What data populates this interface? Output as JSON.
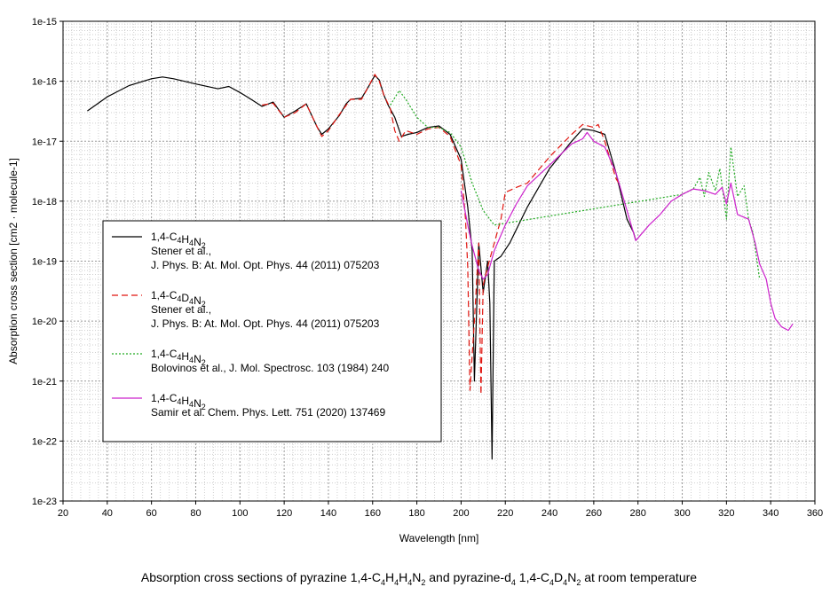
{
  "chart_data": {
    "type": "line",
    "title": "",
    "caption": "Absorption cross sections of pyrazine 1,4-C4H4H4N2 and pyrazine-d4 1,4-C4D4N2 at room temperature",
    "xlabel": "Wavelength [nm]",
    "ylabel": "Absorption cross section [cm2 · molecule-1]",
    "xlim": [
      20,
      360
    ],
    "ylim": [
      1e-23,
      1e-15
    ],
    "yscale": "log",
    "grid": true,
    "x_ticks": [
      "20",
      "40",
      "60",
      "80",
      "100",
      "120",
      "140",
      "160",
      "180",
      "200",
      "220",
      "240",
      "260",
      "280",
      "300",
      "320",
      "340",
      "360"
    ],
    "y_ticks": [
      "1e-23",
      "1e-22",
      "1e-21",
      "1e-20",
      "1e-19",
      "1e-18",
      "1e-17",
      "1e-16",
      "1e-15"
    ],
    "legend_position": "lower-left",
    "series": [
      {
        "name": "1,4-C4H4N2",
        "reference": [
          "Stener et al.,",
          "J. Phys. B: At. Mol. Opt. Phys. 44 (2011) 075203"
        ],
        "color": "#000000",
        "dash": "solid",
        "points": [
          [
            31,
            3.2e-17
          ],
          [
            40,
            5.5e-17
          ],
          [
            50,
            8.5e-17
          ],
          [
            60,
            1.1e-16
          ],
          [
            65,
            1.18e-16
          ],
          [
            70,
            1.1e-16
          ],
          [
            80,
            9e-17
          ],
          [
            90,
            7.5e-17
          ],
          [
            95,
            8.2e-17
          ],
          [
            100,
            6.5e-17
          ],
          [
            105,
            5e-17
          ],
          [
            110,
            3.8e-17
          ],
          [
            115,
            4.5e-17
          ],
          [
            120,
            2.5e-17
          ],
          [
            125,
            3.2e-17
          ],
          [
            130,
            4.2e-17
          ],
          [
            135,
            1.7e-17
          ],
          [
            137,
            1.3e-17
          ],
          [
            140,
            1.6e-17
          ],
          [
            145,
            2.7e-17
          ],
          [
            148,
            4.2e-17
          ],
          [
            150,
            5e-17
          ],
          [
            155,
            5.2e-17
          ],
          [
            158,
            8e-17
          ],
          [
            161,
            1.25e-16
          ],
          [
            163,
            1.05e-16
          ],
          [
            165,
            6e-17
          ],
          [
            167,
            4e-17
          ],
          [
            170,
            2.5e-17
          ],
          [
            173,
            1.2e-17
          ],
          [
            176,
            1.3e-17
          ],
          [
            180,
            1.4e-17
          ],
          [
            185,
            1.7e-17
          ],
          [
            190,
            1.8e-17
          ],
          [
            195,
            1.3e-17
          ],
          [
            200,
            5e-18
          ],
          [
            203,
            8e-19
          ],
          [
            205,
            1.5e-19
          ],
          [
            206,
            1e-21
          ],
          [
            208,
            2e-19
          ],
          [
            210,
            3e-20
          ],
          [
            212,
            1e-19
          ],
          [
            213,
            2e-20
          ],
          [
            214,
            5e-23
          ],
          [
            215,
            1e-19
          ],
          [
            218,
            1.2e-19
          ],
          [
            222,
            2e-19
          ],
          [
            230,
            8e-19
          ],
          [
            240,
            3.5e-18
          ],
          [
            250,
            1e-17
          ],
          [
            255,
            1.6e-17
          ],
          [
            260,
            1.5e-17
          ],
          [
            265,
            1.3e-17
          ],
          [
            270,
            3e-18
          ],
          [
            275,
            5e-19
          ],
          [
            278,
            3e-19
          ],
          [
            279,
            2.2e-19
          ]
        ]
      },
      {
        "name": "1,4-C4D4N2",
        "reference": [
          "Stener et al.,",
          "J. Phys. B: At. Mol. Opt. Phys. 44 (2011) 075203"
        ],
        "color": "#e0150f",
        "dash": "dashed",
        "points": [
          [
            110,
            4e-17
          ],
          [
            115,
            4.3e-17
          ],
          [
            120,
            2.5e-17
          ],
          [
            125,
            3e-17
          ],
          [
            130,
            4.2e-17
          ],
          [
            135,
            1.7e-17
          ],
          [
            137,
            1.2e-17
          ],
          [
            140,
            1.5e-17
          ],
          [
            145,
            2.8e-17
          ],
          [
            150,
            5e-17
          ],
          [
            155,
            5e-17
          ],
          [
            158,
            8e-17
          ],
          [
            161,
            1.3e-16
          ],
          [
            163,
            1e-16
          ],
          [
            165,
            6e-17
          ],
          [
            168,
            3.5e-17
          ],
          [
            170,
            1.5e-17
          ],
          [
            172,
            1e-17
          ],
          [
            175,
            1.5e-17
          ],
          [
            180,
            1.3e-17
          ],
          [
            185,
            1.6e-17
          ],
          [
            190,
            1.7e-17
          ],
          [
            195,
            1.2e-17
          ],
          [
            200,
            4e-18
          ],
          [
            202,
            5e-19
          ],
          [
            203,
            8e-20
          ],
          [
            204,
            7e-22
          ],
          [
            206,
            1e-20
          ],
          [
            208,
            2e-19
          ],
          [
            209,
            6e-22
          ],
          [
            210,
            4e-20
          ],
          [
            212,
            8e-20
          ],
          [
            215,
            2e-19
          ],
          [
            218,
            5e-19
          ],
          [
            220,
            1.4e-18
          ],
          [
            225,
            1.7e-18
          ],
          [
            230,
            2e-18
          ],
          [
            240,
            5.5e-18
          ],
          [
            250,
            1.3e-17
          ],
          [
            255,
            1.9e-17
          ],
          [
            260,
            1.7e-17
          ],
          [
            262,
            1.9e-17
          ],
          [
            265,
            1e-17
          ],
          [
            270,
            2.4e-18
          ],
          [
            272,
            1.8e-18
          ]
        ]
      },
      {
        "name": "1,4-C4H4N2",
        "reference": [
          "Bolovinos et al., J. Mol. Spectrosc. 103 (1984) 240"
        ],
        "color": "#22aa22",
        "dash": "dotted",
        "points": [
          [
            168,
            4e-17
          ],
          [
            172,
            7e-17
          ],
          [
            175,
            5e-17
          ],
          [
            180,
            2.5e-17
          ],
          [
            185,
            1.7e-17
          ],
          [
            190,
            1.7e-17
          ],
          [
            195,
            1.4e-17
          ],
          [
            200,
            8e-18
          ],
          [
            205,
            2e-18
          ],
          [
            210,
            7e-19
          ],
          [
            215,
            4e-19
          ],
          [
            300,
            1.3e-18
          ],
          [
            305,
            1.6e-18
          ],
          [
            308,
            2.5e-18
          ],
          [
            310,
            1.2e-18
          ],
          [
            312,
            3e-18
          ],
          [
            315,
            1.5e-18
          ],
          [
            317,
            3.5e-18
          ],
          [
            320,
            5e-19
          ],
          [
            322,
            8e-18
          ],
          [
            325,
            1.2e-18
          ],
          [
            328,
            1.8e-18
          ],
          [
            330,
            5e-19
          ],
          [
            332,
            3e-19
          ],
          [
            335,
            5e-20
          ]
        ]
      },
      {
        "name": "1,4-C4H4N2",
        "reference": [
          "Samir et al. Chem. Phys. Lett. 751 (2020) 137469"
        ],
        "color": "#cc22cc",
        "dash": "solid",
        "points": [
          [
            200,
            1.5e-18
          ],
          [
            203,
            4e-19
          ],
          [
            205,
            1.8e-19
          ],
          [
            208,
            7e-20
          ],
          [
            210,
            5e-20
          ],
          [
            212,
            6e-20
          ],
          [
            215,
            1.5e-19
          ],
          [
            220,
            4e-19
          ],
          [
            225,
            9e-19
          ],
          [
            230,
            1.8e-18
          ],
          [
            240,
            4e-18
          ],
          [
            250,
            9e-18
          ],
          [
            255,
            1.1e-17
          ],
          [
            257,
            1.4e-17
          ],
          [
            260,
            1e-17
          ],
          [
            265,
            8e-18
          ],
          [
            270,
            3e-18
          ],
          [
            275,
            7e-19
          ],
          [
            279,
            2.2e-19
          ],
          [
            285,
            4e-19
          ],
          [
            290,
            6e-19
          ],
          [
            295,
            1e-18
          ],
          [
            300,
            1.3e-18
          ],
          [
            305,
            1.6e-18
          ],
          [
            310,
            1.5e-18
          ],
          [
            315,
            1.3e-18
          ],
          [
            318,
            1.7e-18
          ],
          [
            320,
            9e-19
          ],
          [
            322,
            2e-18
          ],
          [
            325,
            6e-19
          ],
          [
            330,
            5e-19
          ],
          [
            333,
            2e-19
          ],
          [
            335,
            9e-20
          ],
          [
            338,
            5e-20
          ],
          [
            340,
            2e-20
          ],
          [
            342,
            1.1e-20
          ],
          [
            345,
            8e-21
          ],
          [
            348,
            7e-21
          ],
          [
            350,
            9e-21
          ]
        ]
      }
    ]
  }
}
